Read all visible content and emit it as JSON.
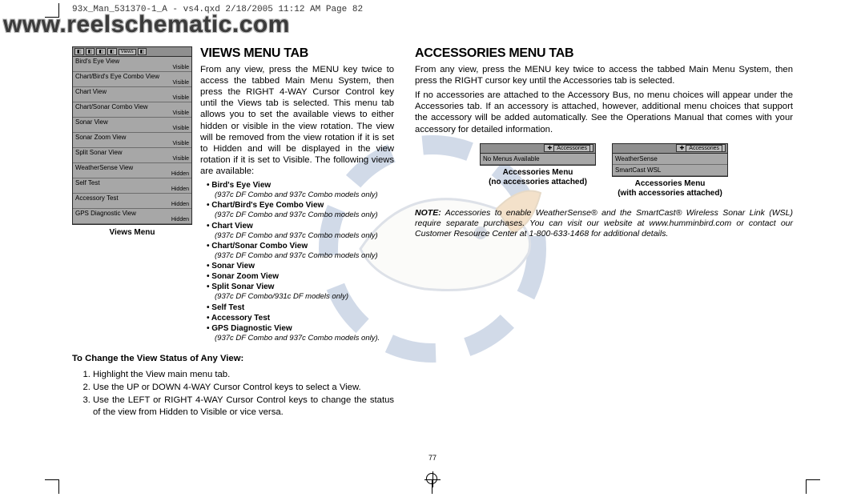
{
  "header_line": "93x_Man_531370-1_A - vs4.qxd  2/18/2005  11:12 AM  Page 82",
  "site_url": "www.reelschematic.com",
  "page_number": "77",
  "left": {
    "title": "Views Menu Tab",
    "para": "From any view, press the MENU key twice to access the tabbed Main Menu System, then press the RIGHT 4-WAY Cursor Control key until the Views tab is selected. This menu tab allows you to set the available views to either hidden or visible in the view rotation. The view will be removed from the view rotation if it is set to Hidden and will be displayed in the view rotation if it is set to Visible. The following views are available:",
    "menu_caption": "Views Menu",
    "menu_rows": [
      {
        "label": "Bird's Eye View",
        "value": "Visible"
      },
      {
        "label": "Chart/Bird's Eye Combo View",
        "value": "Visible"
      },
      {
        "label": "Chart View",
        "value": "Visible"
      },
      {
        "label": "Chart/Sonar Combo View",
        "value": "Visible"
      },
      {
        "label": "Sonar View",
        "value": "Visible"
      },
      {
        "label": "Sonar Zoom View",
        "value": "Visible"
      },
      {
        "label": "Split Sonar View",
        "value": "Visible"
      },
      {
        "label": "WeatherSense View",
        "value": "Hidden"
      },
      {
        "label": "Self Test",
        "value": "Hidden"
      },
      {
        "label": "Accessory Test",
        "value": "Hidden"
      },
      {
        "label": "GPS Diagnostic View",
        "value": "Hidden"
      }
    ],
    "tabs_label": "Views",
    "bullets": [
      {
        "t": "Bird's Eye View",
        "n": "(937c DF Combo and 937c Combo models only)"
      },
      {
        "t": "Chart/Bird's Eye Combo View",
        "n": "(937c DF Combo and 937c Combo models only)"
      },
      {
        "t": "Chart View",
        "n": "(937c DF Combo and 937c Combo models only)"
      },
      {
        "t": "Chart/Sonar Combo View",
        "n": "(937c DF Combo and 937c Combo models only)"
      },
      {
        "t": "Sonar View",
        "n": ""
      },
      {
        "t": "Sonar Zoom View",
        "n": ""
      },
      {
        "t": "Split Sonar View",
        "n": "(937c DF Combo/931c DF models only)"
      },
      {
        "t": "Self Test",
        "n": ""
      },
      {
        "t": "Accessory Test",
        "n": ""
      },
      {
        "t": "GPS Diagnostic View",
        "n": "(937c DF Combo and 937c Combo models only)."
      }
    ],
    "change_heading": "To Change the View Status of Any View:",
    "steps": [
      "Highlight the View main menu tab.",
      "Use the UP or DOWN 4-WAY Cursor Control keys to select a View.",
      "Use the LEFT or RIGHT 4-WAY Cursor Control keys to change the status of the view from Hidden to Visible or vice versa."
    ]
  },
  "right": {
    "title": "Accessories Menu Tab",
    "para1": "From any view, press the MENU key twice to access the tabbed Main Menu System, then press the RIGHT cursor key until the Accessories tab is selected.",
    "para2": "If no accessories are attached to the Accessory Bus, no menu choices will appear under the Accessories tab. If an accessory is attached, however, additional menu choices that support the accessory will be added automatically. See the Operations Manual that comes with your accessory for detailed information.",
    "fig_a": {
      "tabs_label": "Accessories",
      "row": "No Menus Available",
      "caption_l1": "Accessories Menu",
      "caption_l2": "(no accessories attached)"
    },
    "fig_b": {
      "tabs_label": "Accessories",
      "row1": "WeatherSense",
      "row2": "SmartCast WSL",
      "caption_l1": "Accessories Menu",
      "caption_l2": "(with accessories attached)"
    },
    "note_label": "NOTE:",
    "note": "Accessories to enable WeatherSense® and the SmartCast® Wireless Sonar Link (WSL) require separate purchases. You can visit our website at www.humminbird.com or contact our Customer Resource Center at 1-800-633-1468 for additional details."
  },
  "colors": {
    "watermark_blue": "#4b6ea8",
    "watermark_orange": "#d08a2f"
  }
}
